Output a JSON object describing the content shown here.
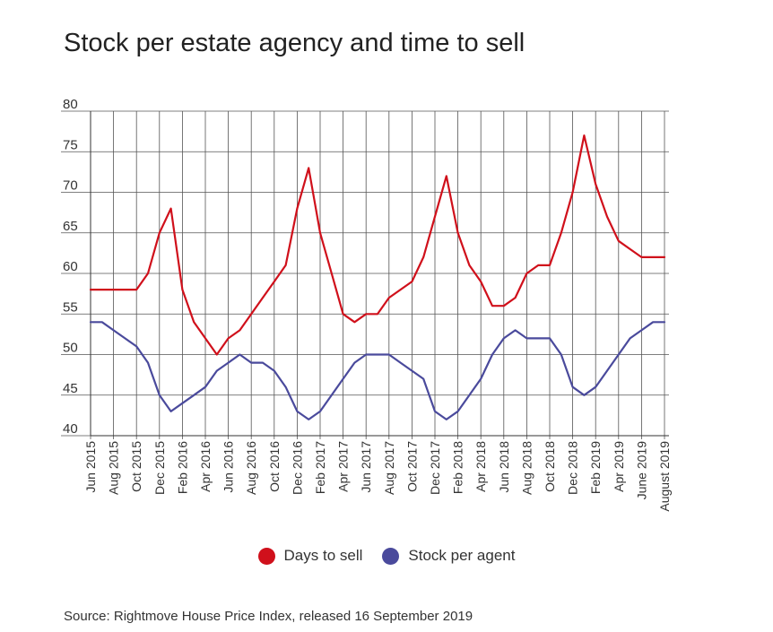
{
  "title": "Stock per estate agency and time to sell",
  "source": "Source: Rightmove House Price Index, released 16 September 2019",
  "colors": {
    "days": "#d0101b",
    "stock": "#4a4a9c",
    "grid": "#555555"
  },
  "chart_data": {
    "type": "line",
    "ylim": [
      40,
      80
    ],
    "yticks": [
      40,
      45,
      50,
      55,
      60,
      65,
      70,
      75,
      80
    ],
    "grid": true,
    "legend_placement": "bottom-center",
    "tick_labels": [
      "Jun 2015",
      "Aug 2015",
      "Oct 2015",
      "Dec 2015",
      "Feb 2016",
      "Apr 2016",
      "Jun 2016",
      "Aug 2016",
      "Oct 2016",
      "Dec 2016",
      "Feb 2017",
      "Apr 2017",
      "Jun 2017",
      "Aug 2017",
      "Oct 2017",
      "Dec 2017",
      "Feb 2018",
      "Apr 2018",
      "Jun 2018",
      "Aug 2018",
      "Oct 2018",
      "Dec 2018",
      "Feb 2019",
      "Apr 2019",
      "June 2019",
      "August 2019"
    ],
    "months": [
      "2015-06",
      "2015-07",
      "2015-08",
      "2015-09",
      "2015-10",
      "2015-11",
      "2015-12",
      "2016-01",
      "2016-02",
      "2016-03",
      "2016-04",
      "2016-05",
      "2016-06",
      "2016-07",
      "2016-08",
      "2016-09",
      "2016-10",
      "2016-11",
      "2016-12",
      "2017-01",
      "2017-02",
      "2017-03",
      "2017-04",
      "2017-05",
      "2017-06",
      "2017-07",
      "2017-08",
      "2017-09",
      "2017-10",
      "2017-11",
      "2017-12",
      "2018-01",
      "2018-02",
      "2018-03",
      "2018-04",
      "2018-05",
      "2018-06",
      "2018-07",
      "2018-08",
      "2018-09",
      "2018-10",
      "2018-11",
      "2018-12",
      "2019-01",
      "2019-02",
      "2019-03",
      "2019-04",
      "2019-05",
      "2019-06",
      "2019-07",
      "2019-08"
    ],
    "series": [
      {
        "name": "Days to sell",
        "color": "#d0101b",
        "values": [
          58,
          58,
          58,
          58,
          58,
          60,
          65,
          68,
          58,
          54,
          52,
          50,
          52,
          53,
          55,
          57,
          59,
          61,
          68,
          73,
          65,
          60,
          55,
          54,
          55,
          55,
          57,
          58,
          59,
          62,
          67,
          72,
          65,
          61,
          59,
          56,
          56,
          57,
          60,
          61,
          61,
          65,
          70,
          77,
          71,
          67,
          64,
          63,
          62,
          62,
          62
        ]
      },
      {
        "name": "Stock per agent",
        "color": "#4a4a9c",
        "values": [
          54,
          54,
          53,
          52,
          51,
          49,
          45,
          43,
          44,
          45,
          46,
          48,
          49,
          50,
          49,
          49,
          48,
          46,
          43,
          42,
          43,
          45,
          47,
          49,
          50,
          50,
          50,
          49,
          48,
          47,
          43,
          42,
          43,
          45,
          47,
          50,
          52,
          53,
          52,
          52,
          52,
          50,
          46,
          45,
          46,
          48,
          50,
          52,
          53,
          54,
          54
        ]
      }
    ]
  }
}
